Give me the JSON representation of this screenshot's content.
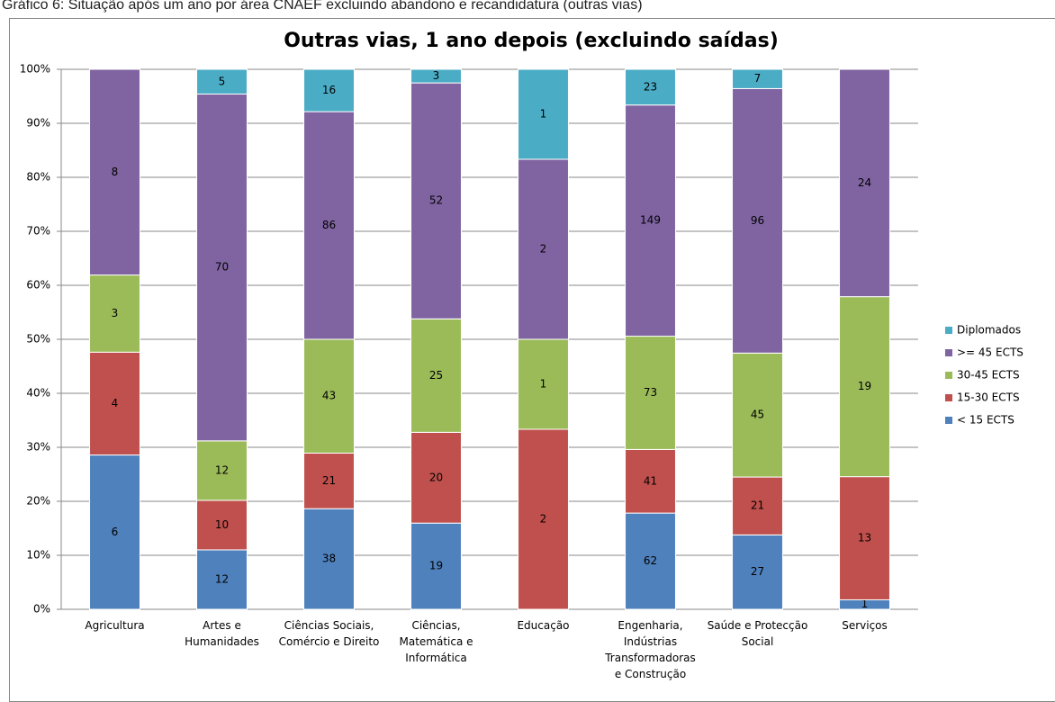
{
  "caption": "Gráfico 6: Situação após um ano por área CNAEF excluindo abandono e recandidatura (outras vias)",
  "chart_data": {
    "type": "bar",
    "stacking": "percent",
    "title": "Outras vias, 1 ano depois (excluindo saídas)",
    "categories": [
      "Agricultura",
      "Artes e\nHumanidades",
      "Ciências Sociais,\nComércio e Direito",
      "Ciências,\nMatemática e\nInformática",
      "Educação",
      "Engenharia,\nIndústrias\nTransformadoras\ne Construção",
      "Saúde e Protecção\nSocial",
      "Serviços"
    ],
    "series": [
      {
        "name": "< 15 ECTS",
        "color": "#4f81bd",
        "values": [
          6,
          12,
          38,
          19,
          null,
          62,
          27,
          1
        ]
      },
      {
        "name": "15-30 ECTS",
        "color": "#c0504d",
        "values": [
          4,
          10,
          21,
          20,
          2,
          41,
          21,
          13
        ]
      },
      {
        "name": "30-45 ECTS",
        "color": "#9bbb59",
        "values": [
          3,
          12,
          43,
          25,
          1,
          73,
          45,
          19
        ]
      },
      {
        "name": ">= 45 ECTS",
        "color": "#8064a2",
        "values": [
          8,
          70,
          86,
          52,
          2,
          149,
          96,
          24
        ]
      },
      {
        "name": "Diplomados",
        "color": "#4bacc6",
        "values": [
          null,
          5,
          16,
          3,
          1,
          23,
          7,
          null
        ]
      }
    ],
    "ylim": [
      0,
      100
    ],
    "yticks": [
      {
        "value": 0,
        "label": "0%"
      },
      {
        "value": 10,
        "label": "10%"
      },
      {
        "value": 20,
        "label": "20%"
      },
      {
        "value": 30,
        "label": "30%"
      },
      {
        "value": 40,
        "label": "40%"
      },
      {
        "value": 50,
        "label": "50%"
      },
      {
        "value": 60,
        "label": "60%"
      },
      {
        "value": 70,
        "label": "70%"
      },
      {
        "value": 80,
        "label": "80%"
      },
      {
        "value": 90,
        "label": "90%"
      },
      {
        "value": 100,
        "label": "100%"
      }
    ],
    "grid": true,
    "legend": "right"
  }
}
